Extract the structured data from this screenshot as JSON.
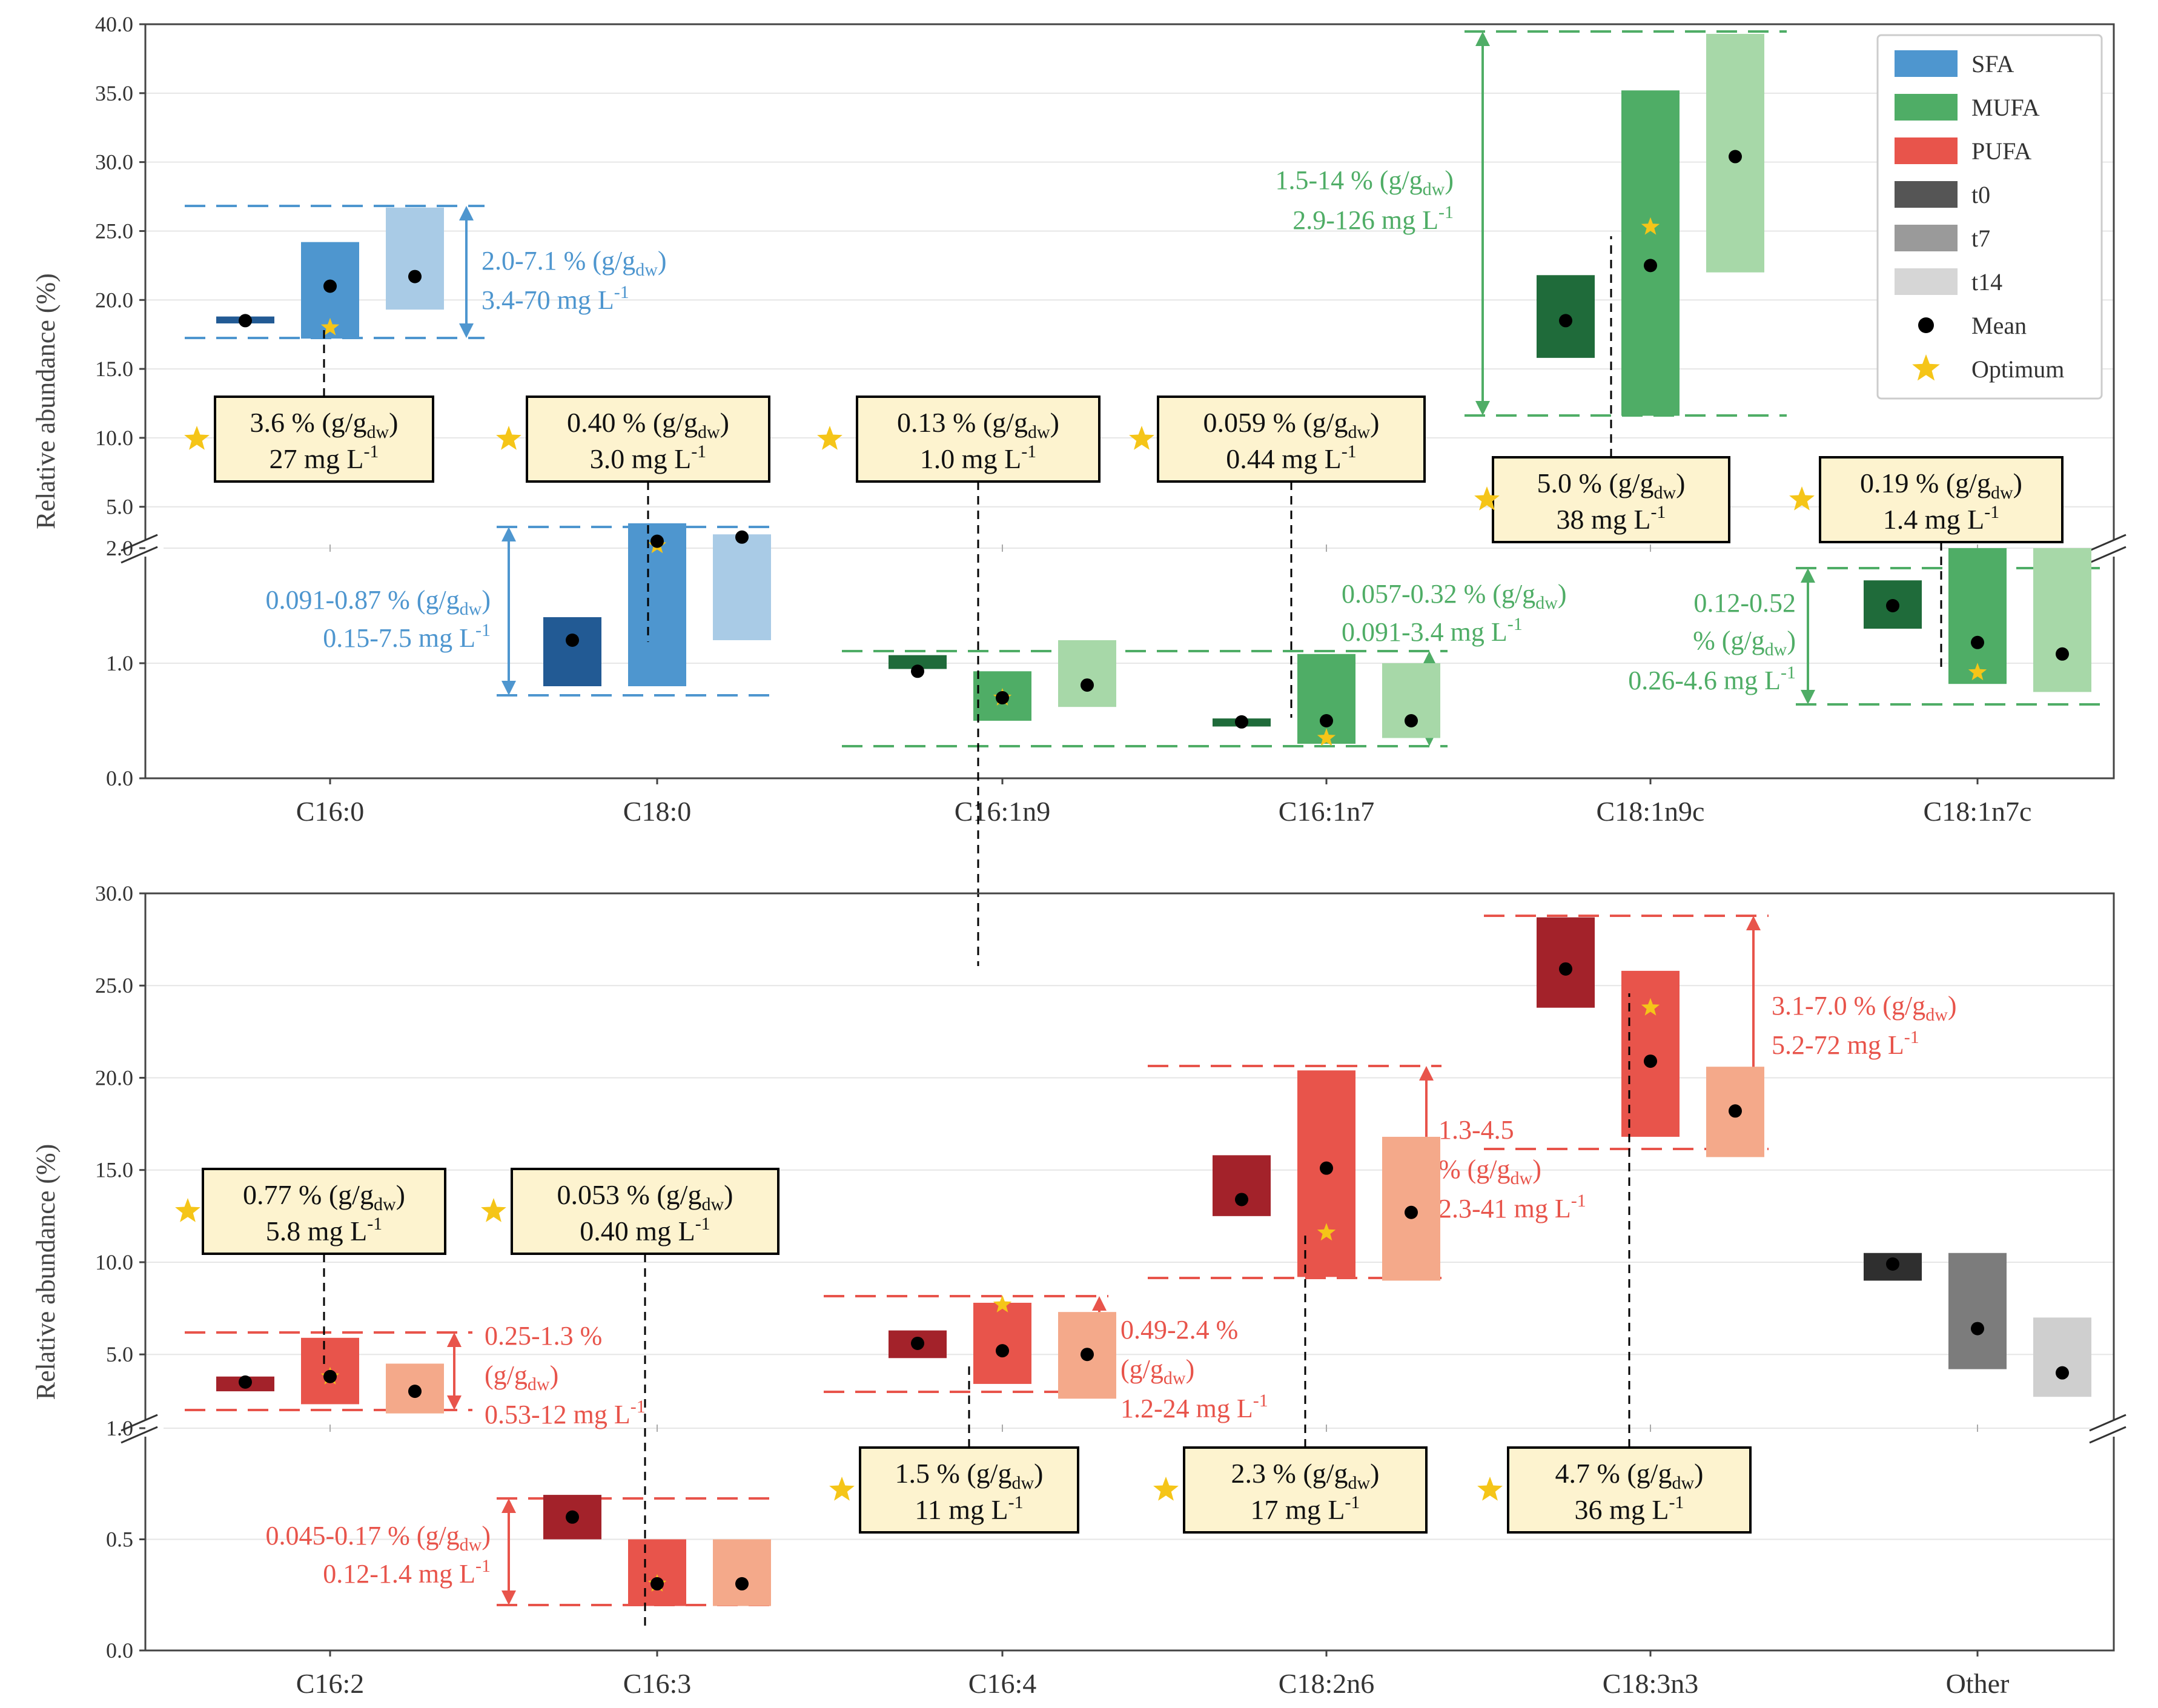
{
  "figure": {
    "legend": {
      "items": [
        {
          "label": "SFA",
          "color": "#4e96cf"
        },
        {
          "label": "MUFA",
          "color": "#4fad66"
        },
        {
          "label": "PUFA",
          "color": "#e8544b"
        },
        {
          "label": "t0",
          "color": "#555555"
        },
        {
          "label": "t7",
          "color": "#9a9a9a"
        },
        {
          "label": "t14",
          "color": "#d6d6d6"
        },
        {
          "label": "Mean",
          "marker": "dot",
          "color": "#000000"
        },
        {
          "label": "Optimum",
          "marker": "star",
          "color": "#f5c518"
        }
      ]
    }
  },
  "chart_data": [
    {
      "type": "bar",
      "panel": "top",
      "ylabel": "Relative abundance (%)",
      "y_axis": {
        "broken": true,
        "lower_ticks": [
          "0.0",
          "1.0",
          "2.0"
        ],
        "upper_ticks": [
          "5.0",
          "10.0",
          "15.0",
          "20.0",
          "25.0",
          "30.0",
          "35.0",
          "40.0"
        ],
        "lower_range": [
          0,
          2
        ],
        "upper_range": [
          2,
          40
        ]
      },
      "grid": true,
      "legend_position": "top-right",
      "categories": [
        "C16:0",
        "C18:0",
        "C16:1n9",
        "C16:1n7",
        "C18:1n9c",
        "C18:1n7c"
      ],
      "category_class": [
        "SFA",
        "SFA",
        "MUFA",
        "MUFA",
        "MUFA",
        "MUFA"
      ],
      "series": [
        {
          "name": "t0",
          "low": [
            18.3,
            0.8,
            0.95,
            0.45,
            15.8,
            1.3
          ],
          "high": [
            18.8,
            1.4,
            1.07,
            0.52,
            21.8,
            1.72
          ],
          "mean": [
            18.5,
            1.2,
            0.93,
            0.49,
            18.5,
            1.5
          ]
        },
        {
          "name": "t7",
          "low": [
            17.2,
            0.8,
            0.5,
            0.3,
            11.6,
            0.82
          ],
          "high": [
            24.2,
            3.8,
            0.93,
            1.08,
            35.2,
            2.0
          ],
          "mean": [
            21.0,
            2.5,
            0.7,
            0.5,
            22.5,
            1.18
          ]
        },
        {
          "name": "t14",
          "low": [
            19.3,
            1.2,
            0.62,
            0.35,
            22.0,
            0.75
          ],
          "high": [
            26.7,
            3.0,
            1.2,
            1.0,
            39.3,
            2.0
          ],
          "mean": [
            21.7,
            2.8,
            0.81,
            0.5,
            30.4,
            1.08
          ]
        }
      ],
      "optimum": [
        18.0,
        2.2,
        0.7,
        0.35,
        25.3,
        0.92
      ],
      "annotations": {
        "ranges": [
          {
            "line1": "2.0-7.1 % (g/g",
            "line1_sub": "dw",
            "line1_end": ")",
            "line2": "3.4-70 mg L",
            "line2_sup": "-1"
          },
          {
            "line1": "0.091-0.87 % (g/g",
            "line1_sub": "dw",
            "line1_end": ")",
            "line2": "0.15-7.5 mg L",
            "line2_sup": "-1"
          },
          {
            "line1": "0.057-0.32 % (g/g",
            "line1_sub": "dw",
            "line1_end": ")",
            "line2": "0.091-3.4 mg L",
            "line2_sup": "-1"
          },
          {
            "line1": "1.5-14 % (g/g",
            "line1_sub": "dw",
            "line1_end": ")",
            "line2": "2.9-126 mg L",
            "line2_sup": "-1"
          },
          {
            "line0": "0.12-0.52",
            "line1": "% (g/g",
            "line1_sub": "dw",
            "line1_end": ")",
            "line2": "0.26-4.6 mg L",
            "line2_sup": "-1"
          }
        ],
        "optimum_boxes": [
          {
            "line1": "3.6 % (g/g",
            "line1_sub": "dw",
            "line1_end": ")",
            "line2": "27 mg L",
            "line2_sup": "-1"
          },
          {
            "line1": "0.40 % (g/g",
            "line1_sub": "dw",
            "line1_end": ")",
            "line2": "3.0 mg L",
            "line2_sup": "-1"
          },
          {
            "line1": "0.13 % (g/g",
            "line1_sub": "dw",
            "line1_end": ")",
            "line2": "1.0 mg L",
            "line2_sup": "-1"
          },
          {
            "line1": "0.059 % (g/g",
            "line1_sub": "dw",
            "line1_end": ")",
            "line2": "0.44 mg L",
            "line2_sup": "-1"
          },
          {
            "line1": "5.0 % (g/g",
            "line1_sub": "dw",
            "line1_end": ")",
            "line2": "38 mg L",
            "line2_sup": "-1"
          },
          {
            "line1": "0.19 % (g/g",
            "line1_sub": "dw",
            "line1_end": ")",
            "line2": "1.4 mg L",
            "line2_sup": "-1"
          }
        ]
      }
    },
    {
      "type": "bar",
      "panel": "bottom",
      "ylabel": "Relative abundance (%)",
      "y_axis": {
        "broken": true,
        "lower_ticks": [
          "0.0",
          "0.5",
          "1.0"
        ],
        "upper_ticks": [
          "5.0",
          "10.0",
          "15.0",
          "20.0",
          "25.0",
          "30.0"
        ],
        "lower_range": [
          0,
          1
        ],
        "upper_range": [
          1,
          30
        ]
      },
      "grid": true,
      "categories": [
        "C16:2",
        "C16:3",
        "C16:4",
        "C18:2n6",
        "C18:3n3",
        "Other"
      ],
      "category_class": [
        "PUFA",
        "PUFA",
        "PUFA",
        "PUFA",
        "PUFA",
        "Other"
      ],
      "series": [
        {
          "name": "t0",
          "low": [
            3.0,
            0.5,
            4.8,
            12.5,
            23.8,
            9.0
          ],
          "high": [
            3.8,
            0.7,
            6.3,
            15.8,
            28.7,
            10.5
          ],
          "mean": [
            3.5,
            0.6,
            5.6,
            13.4,
            25.9,
            9.9
          ]
        },
        {
          "name": "t7",
          "low": [
            2.3,
            0.2,
            3.4,
            9.2,
            16.8,
            4.2
          ],
          "high": [
            5.9,
            0.5,
            7.8,
            20.4,
            25.8,
            10.5
          ],
          "mean": [
            3.8,
            0.3,
            5.2,
            15.1,
            20.9,
            6.4
          ]
        },
        {
          "name": "t14",
          "low": [
            1.8,
            0.2,
            2.6,
            9.0,
            15.7,
            2.7
          ],
          "high": [
            4.5,
            0.5,
            7.3,
            16.8,
            20.6,
            7.0
          ],
          "mean": [
            3.0,
            0.3,
            5.0,
            12.7,
            18.2,
            4.0
          ]
        }
      ],
      "optimum": [
        3.8,
        0.3,
        7.7,
        11.6,
        23.8,
        null
      ],
      "annotations": {
        "ranges": [
          {
            "line0": "0.25-1.3 %",
            "line1": "(g/g",
            "line1_sub": "dw",
            "line1_end": ")",
            "line2": "0.53-12 mg L",
            "line2_sup": "-1"
          },
          {
            "line1": "0.045-0.17 % (g/g",
            "line1_sub": "dw",
            "line1_end": ")",
            "line2": "0.12-1.4 mg L",
            "line2_sup": "-1"
          },
          {
            "line0": "0.49-2.4 %",
            "line1": "(g/g",
            "line1_sub": "dw",
            "line1_end": ")",
            "line2": "1.2-24 mg L",
            "line2_sup": "-1"
          },
          {
            "line0": "1.3-4.5",
            "line1": "% (g/g",
            "line1_sub": "dw",
            "line1_end": ")",
            "line2": "2.3-41 mg L",
            "line2_sup": "-1"
          },
          {
            "line1": "3.1-7.0 % (g/g",
            "line1_sub": "dw",
            "line1_end": ")",
            "line2": "5.2-72 mg L",
            "line2_sup": "-1"
          }
        ],
        "optimum_boxes": [
          {
            "line1": "0.77 % (g/g",
            "line1_sub": "dw",
            "line1_end": ")",
            "line2": "5.8 mg L",
            "line2_sup": "-1"
          },
          {
            "line1": "0.053 % (g/g",
            "line1_sub": "dw",
            "line1_end": ")",
            "line2": "0.40 mg L",
            "line2_sup": "-1"
          },
          {
            "line1": "1.5 % (g/g",
            "line1_sub": "dw",
            "line1_end": ")",
            "line2": "11 mg L",
            "line2_sup": "-1"
          },
          {
            "line1": "2.3 % (g/g",
            "line1_sub": "dw",
            "line1_end": ")",
            "line2": "17 mg L",
            "line2_sup": "-1"
          },
          {
            "line1": "4.7 % (g/g",
            "line1_sub": "dw",
            "line1_end": ")",
            "line2": "36 mg L",
            "line2_sup": "-1"
          }
        ]
      }
    }
  ]
}
